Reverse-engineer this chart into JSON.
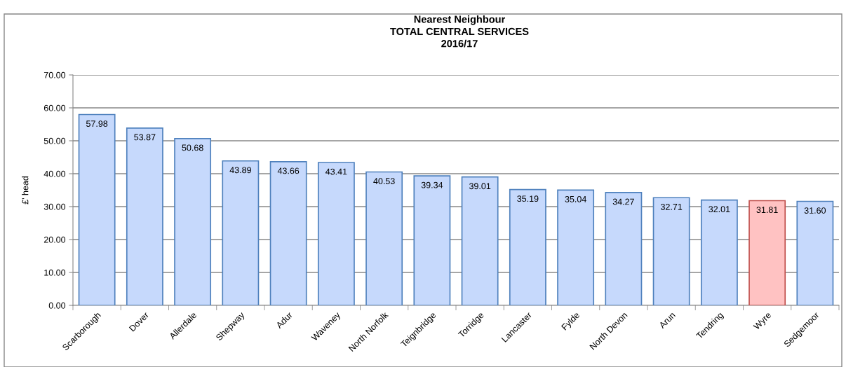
{
  "chart_data": {
    "type": "bar",
    "title": "Nearest Neighbour\nTOTAL CENTRAL SERVICES\n2016/17",
    "ylabel": "£' head",
    "categories": [
      "Scarborough",
      "Dover",
      "Allerdale",
      "Shepway",
      "Adur",
      "Waveney",
      "North Norfolk",
      "Teignbridge",
      "Torridge",
      "Lancaster",
      "Fylde",
      "North Devon",
      "Arun",
      "Tendring",
      "Wyre",
      "Sedgemoor"
    ],
    "values": [
      57.98,
      53.87,
      50.68,
      43.89,
      43.66,
      43.41,
      40.53,
      39.34,
      39.01,
      35.19,
      35.04,
      34.27,
      32.71,
      32.01,
      31.81,
      31.6
    ],
    "value_labels": [
      "57.98",
      "53.87",
      "50.68",
      "43.89",
      "43.66",
      "43.41",
      "40.53",
      "39.34",
      "39.01",
      "35.19",
      "35.04",
      "34.27",
      "32.71",
      "32.01",
      "31.81",
      "31.60"
    ],
    "colors": [
      "#c6d9fc",
      "#c6d9fc",
      "#c6d9fc",
      "#c6d9fc",
      "#c6d9fc",
      "#c6d9fc",
      "#c6d9fc",
      "#c6d9fc",
      "#c6d9fc",
      "#c6d9fc",
      "#c6d9fc",
      "#c6d9fc",
      "#c6d9fc",
      "#c6d9fc",
      "#ffc2c2",
      "#c6d9fc"
    ],
    "ylim": [
      0,
      70
    ],
    "yticks": [
      {
        "value": 0,
        "label": "0.00"
      },
      {
        "value": 10,
        "label": "10.00"
      },
      {
        "value": 20,
        "label": "20.00"
      },
      {
        "value": 30,
        "label": "30.00"
      },
      {
        "value": 40,
        "label": "40.00"
      },
      {
        "value": 50,
        "label": "50.00"
      },
      {
        "value": 60,
        "label": "60.00"
      },
      {
        "value": 70,
        "label": "70.00"
      }
    ],
    "grid": "y"
  }
}
